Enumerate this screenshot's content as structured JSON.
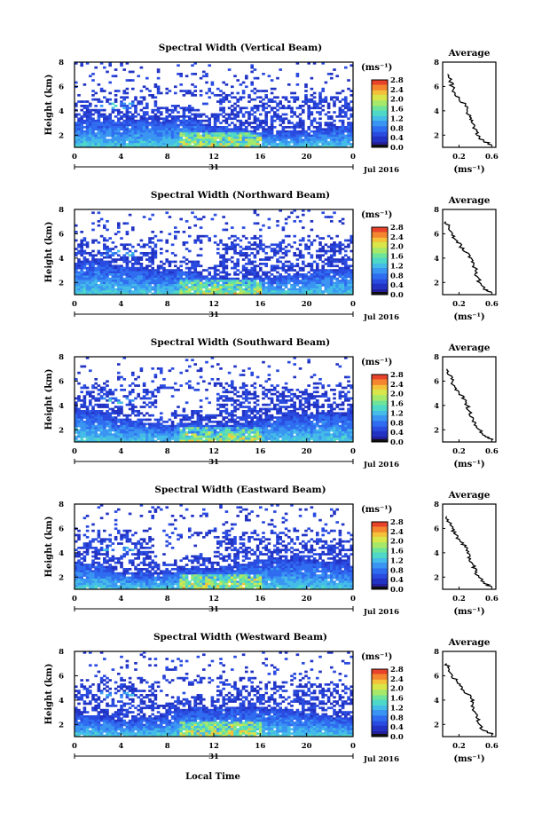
{
  "figure": {
    "xlabel": "Local Time",
    "date_label": "Jul 2016",
    "day_label": "31",
    "unit_label": "(ms⁻¹)",
    "avg_title": "Average",
    "avg_xlabel": "(ms⁻¹)"
  },
  "colormap": [
    "#241e9a",
    "#2233c4",
    "#2a4be0",
    "#2f6cf0",
    "#3a95f2",
    "#45bce8",
    "#4fd8c8",
    "#6ee39a",
    "#a6e86a",
    "#d8e64a",
    "#f4c23a",
    "#f3862e",
    "#e8422a"
  ],
  "chart_data": [
    {
      "type": "heatmap",
      "title": "Spectral Width (Vertical Beam)",
      "xlabel": "Local Time",
      "ylabel": "Height (km)",
      "xlim": [
        0,
        24
      ],
      "ylim": [
        1,
        8
      ],
      "x_ticks": [
        "0",
        "4",
        "8",
        "12",
        "16",
        "20",
        "0"
      ],
      "y_ticks": [
        "2",
        "4",
        "6",
        "8"
      ],
      "colorbar": {
        "label": "(ms⁻¹)",
        "range": [
          0,
          2.8
        ],
        "ticks": [
          "0.0",
          "0.4",
          "0.8",
          "1.2",
          "1.6",
          "2.0",
          "2.4",
          "2.8"
        ]
      },
      "average_profile": {
        "title": "Average",
        "xlabel": "(ms⁻¹)",
        "xlim": [
          0,
          0.65
        ],
        "x_ticks": [
          "0.2",
          "0.6"
        ],
        "y_ticks": [
          "2",
          "4",
          "6",
          "8"
        ],
        "height_km": [
          1.2,
          1.5,
          2,
          2.5,
          3,
          3.5,
          4,
          4.5,
          5,
          5.5,
          6,
          6.5,
          7
        ],
        "width_ms": [
          0.6,
          0.5,
          0.42,
          0.4,
          0.36,
          0.33,
          0.3,
          0.28,
          0.2,
          0.15,
          0.12,
          0.09,
          0.06
        ]
      }
    },
    {
      "type": "heatmap",
      "title": "Spectral Width (Northward Beam)",
      "xlabel": "Local Time",
      "ylabel": "Height (km)",
      "xlim": [
        0,
        24
      ],
      "ylim": [
        1,
        8
      ],
      "x_ticks": [
        "0",
        "4",
        "8",
        "12",
        "16",
        "20",
        "0"
      ],
      "y_ticks": [
        "2",
        "4",
        "6",
        "8"
      ],
      "colorbar": {
        "label": "(ms⁻¹)",
        "range": [
          0,
          2.8
        ],
        "ticks": [
          "0.0",
          "0.4",
          "0.8",
          "1.2",
          "1.6",
          "2.0",
          "2.4",
          "2.8"
        ]
      },
      "average_profile": {
        "title": "Average",
        "xlabel": "(ms⁻¹)",
        "xlim": [
          0,
          0.65
        ],
        "x_ticks": [
          "0.2",
          "0.6"
        ],
        "y_ticks": [
          "2",
          "4",
          "6",
          "8"
        ],
        "height_km": [
          1.2,
          1.5,
          2,
          2.5,
          3,
          3.5,
          4,
          4.5,
          5,
          5.5,
          6,
          6.5,
          7
        ],
        "width_ms": [
          0.6,
          0.5,
          0.45,
          0.42,
          0.4,
          0.38,
          0.35,
          0.28,
          0.22,
          0.16,
          0.12,
          0.08,
          0.04
        ]
      }
    },
    {
      "type": "heatmap",
      "title": "Spectral Width (Southward Beam)",
      "xlabel": "Local Time",
      "ylabel": "Height (km)",
      "xlim": [
        0,
        24
      ],
      "ylim": [
        1,
        8
      ],
      "x_ticks": [
        "0",
        "4",
        "8",
        "12",
        "16",
        "20",
        "0"
      ],
      "y_ticks": [
        "2",
        "4",
        "6",
        "8"
      ],
      "colorbar": {
        "label": "(ms⁻¹)",
        "range": [
          0,
          2.8
        ],
        "ticks": [
          "0.0",
          "0.4",
          "0.8",
          "1.2",
          "1.6",
          "2.0",
          "2.4",
          "2.8"
        ]
      },
      "average_profile": {
        "title": "Average",
        "xlabel": "(ms⁻¹)",
        "xlim": [
          0,
          0.65
        ],
        "x_ticks": [
          "0.2",
          "0.6"
        ],
        "y_ticks": [
          "2",
          "4",
          "6",
          "8"
        ],
        "height_km": [
          1.2,
          1.5,
          2,
          2.5,
          3,
          3.5,
          4,
          4.5,
          5,
          5.5,
          6,
          6.5,
          7
        ],
        "width_ms": [
          0.62,
          0.52,
          0.45,
          0.4,
          0.37,
          0.33,
          0.3,
          0.27,
          0.2,
          0.15,
          0.12,
          0.08,
          0.05
        ]
      }
    },
    {
      "type": "heatmap",
      "title": "Spectral Width (Eastward Beam)",
      "xlabel": "Local Time",
      "ylabel": "Height (km)",
      "xlim": [
        0,
        24
      ],
      "ylim": [
        1,
        8
      ],
      "x_ticks": [
        "0",
        "4",
        "8",
        "12",
        "16",
        "20",
        "0"
      ],
      "y_ticks": [
        "2",
        "4",
        "6",
        "8"
      ],
      "colorbar": {
        "label": "(ms⁻¹)",
        "range": [
          0,
          2.8
        ],
        "ticks": [
          "0.0",
          "0.4",
          "0.8",
          "1.2",
          "1.6",
          "2.0",
          "2.4",
          "2.8"
        ]
      },
      "average_profile": {
        "title": "Average",
        "xlabel": "(ms⁻¹)",
        "xlim": [
          0,
          0.65
        ],
        "x_ticks": [
          "0.2",
          "0.6"
        ],
        "y_ticks": [
          "2",
          "4",
          "6",
          "8"
        ],
        "height_km": [
          1.2,
          1.5,
          2,
          2.5,
          3,
          3.5,
          4,
          4.5,
          5,
          5.5,
          6,
          6.5,
          7
        ],
        "width_ms": [
          0.6,
          0.5,
          0.44,
          0.4,
          0.37,
          0.34,
          0.3,
          0.27,
          0.21,
          0.16,
          0.12,
          0.08,
          0.05
        ]
      }
    },
    {
      "type": "heatmap",
      "title": "Spectral Width (Westward Beam)",
      "xlabel": "Local Time",
      "ylabel": "Height (km)",
      "xlim": [
        0,
        24
      ],
      "ylim": [
        1,
        8
      ],
      "x_ticks": [
        "0",
        "4",
        "8",
        "12",
        "16",
        "20",
        "0"
      ],
      "y_ticks": [
        "2",
        "4",
        "6",
        "8"
      ],
      "colorbar": {
        "label": "(ms⁻¹)",
        "range": [
          0,
          2.8
        ],
        "ticks": [
          "0.0",
          "0.4",
          "0.8",
          "1.2",
          "1.6",
          "2.0",
          "2.4",
          "2.8"
        ]
      },
      "average_profile": {
        "title": "Average",
        "xlabel": "(ms⁻¹)",
        "xlim": [
          0,
          0.65
        ],
        "x_ticks": [
          "0.2",
          "0.6"
        ],
        "y_ticks": [
          "2",
          "4",
          "6",
          "8"
        ],
        "height_km": [
          1.2,
          1.5,
          2,
          2.5,
          3,
          3.5,
          4,
          4.5,
          5,
          5.5,
          6,
          6.5,
          7
        ],
        "width_ms": [
          0.62,
          0.5,
          0.45,
          0.42,
          0.4,
          0.35,
          0.38,
          0.3,
          0.24,
          0.18,
          0.12,
          0.08,
          0.05
        ]
      }
    }
  ]
}
